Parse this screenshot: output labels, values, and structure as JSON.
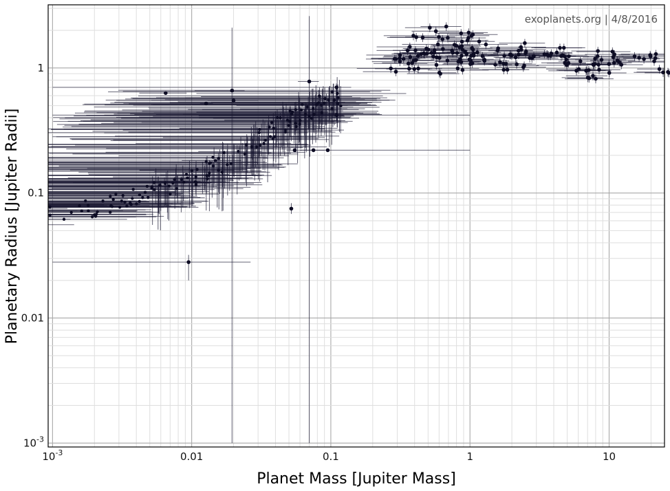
{
  "credit": "exoplanets.org | 4/8/2016",
  "chart_data": {
    "type": "scatter",
    "title": "",
    "xlabel": "Planet Mass [Jupiter Mass]",
    "ylabel": "Planetary Radius [Jupiter Radii]",
    "xscale": "log",
    "yscale": "log",
    "xlim": [
      0.00093,
      25
    ],
    "ylim": [
      0.00093,
      3.2
    ],
    "grid": true,
    "x_ticks": [
      {
        "value": 0.001,
        "label": "10",
        "exp": "-3"
      },
      {
        "value": 0.01,
        "label": "0.01",
        "exp": ""
      },
      {
        "value": 0.1,
        "label": "0.1",
        "exp": ""
      },
      {
        "value": 1,
        "label": "1",
        "exp": ""
      },
      {
        "value": 10,
        "label": "10",
        "exp": ""
      }
    ],
    "y_ticks": [
      {
        "value": 0.001,
        "label": "10",
        "exp": "-3"
      },
      {
        "value": 0.01,
        "label": "0.01",
        "exp": ""
      },
      {
        "value": 0.1,
        "label": "0.1",
        "exp": ""
      },
      {
        "value": 1,
        "label": "1",
        "exp": ""
      }
    ],
    "colors": {
      "point": "#0d0c24",
      "errorbar": "#15142e",
      "grid_major": "#a8a8a8",
      "grid_minor": "#dedede",
      "frame": "#000000"
    },
    "notable_points": [
      {
        "x": 0.0065,
        "y": 0.63,
        "xerr": [
          0.0042,
          0.0092
        ]
      },
      {
        "x": 0.0095,
        "y": 0.028,
        "xerr": [
          0.001,
          0.0265
        ],
        "yerr": [
          0.02,
          0.032
        ]
      },
      {
        "x": 0.0127,
        "y": 0.52,
        "xerr": [
          0.0115,
          0.0142
        ]
      },
      {
        "x": 0.0195,
        "y": 0.66,
        "xerr": [
          0.0105,
          0.024
        ],
        "yerr": [
          0.001,
          2.1
        ]
      },
      {
        "x": 0.02,
        "y": 0.55,
        "xerr": [
          0.013,
          0.03
        ]
      },
      {
        "x": 0.07,
        "y": 0.78,
        "xerr": [
          0.058,
          0.082
        ],
        "yerr": [
          0.001,
          2.6
        ]
      },
      {
        "x": 0.052,
        "y": 0.075,
        "yerr": [
          0.068,
          0.083
        ]
      },
      {
        "x": 0.055,
        "y": 0.22,
        "xerr": [
          0.048,
          0.062
        ]
      },
      {
        "x": 0.075,
        "y": 0.22,
        "xerr": [
          0.06,
          0.09
        ]
      },
      {
        "x": 0.095,
        "y": 0.22,
        "xerr": [
          0.06,
          1.0
        ]
      },
      {
        "x": 0.11,
        "y": 0.7,
        "xerr": [
          0.001,
          0.14
        ]
      },
      {
        "x": 0.11,
        "y": 0.42,
        "xerr": [
          0.001,
          1.0
        ]
      }
    ],
    "series": [
      {
        "description": "small planets: mass-radius trend with wide mass error bars",
        "points": [
          {
            "x": 0.00095,
            "y": 0.066
          },
          {
            "x": 0.00115,
            "y": 0.068
          },
          {
            "x": 0.00135,
            "y": 0.07
          },
          {
            "x": 0.0016,
            "y": 0.073
          },
          {
            "x": 0.0019,
            "y": 0.077
          },
          {
            "x": 0.0024,
            "y": 0.08
          },
          {
            "x": 0.003,
            "y": 0.085
          },
          {
            "x": 0.0038,
            "y": 0.09
          },
          {
            "x": 0.0048,
            "y": 0.1
          },
          {
            "x": 0.006,
            "y": 0.11
          },
          {
            "x": 0.0075,
            "y": 0.12
          },
          {
            "x": 0.009,
            "y": 0.13
          },
          {
            "x": 0.011,
            "y": 0.14
          },
          {
            "x": 0.013,
            "y": 0.155
          },
          {
            "x": 0.016,
            "y": 0.17
          },
          {
            "x": 0.019,
            "y": 0.19
          },
          {
            "x": 0.022,
            "y": 0.21
          },
          {
            "x": 0.026,
            "y": 0.24
          },
          {
            "x": 0.03,
            "y": 0.27
          },
          {
            "x": 0.035,
            "y": 0.3
          },
          {
            "x": 0.04,
            "y": 0.33
          },
          {
            "x": 0.046,
            "y": 0.36
          },
          {
            "x": 0.055,
            "y": 0.4
          },
          {
            "x": 0.065,
            "y": 0.45
          },
          {
            "x": 0.08,
            "y": 0.5
          },
          {
            "x": 0.1,
            "y": 0.55
          },
          {
            "x": 0.13,
            "y": 0.62
          },
          {
            "x": 0.16,
            "y": 0.68
          },
          {
            "x": 0.2,
            "y": 0.75
          }
        ]
      },
      {
        "description": "hot Jupiters cluster",
        "points": [
          {
            "x": 0.3,
            "y": 1.05
          },
          {
            "x": 0.35,
            "y": 1.3
          },
          {
            "x": 0.4,
            "y": 1.1
          },
          {
            "x": 0.45,
            "y": 1.55
          },
          {
            "x": 0.5,
            "y": 1.9
          },
          {
            "x": 0.55,
            "y": 1.2
          },
          {
            "x": 0.6,
            "y": 1.35
          },
          {
            "x": 0.7,
            "y": 1.0
          },
          {
            "x": 0.75,
            "y": 1.45
          },
          {
            "x": 0.85,
            "y": 2.0
          },
          {
            "x": 0.9,
            "y": 1.25
          },
          {
            "x": 1.0,
            "y": 1.15
          },
          {
            "x": 1.1,
            "y": 1.6
          },
          {
            "x": 1.3,
            "y": 1.3
          },
          {
            "x": 1.5,
            "y": 1.05
          },
          {
            "x": 1.8,
            "y": 1.2
          },
          {
            "x": 2.0,
            "y": 1.4
          },
          {
            "x": 2.5,
            "y": 1.1
          },
          {
            "x": 3.0,
            "y": 1.25
          },
          {
            "x": 4.0,
            "y": 1.15
          },
          {
            "x": 5.0,
            "y": 1.3
          },
          {
            "x": 6.0,
            "y": 1.05
          },
          {
            "x": 7.0,
            "y": 0.85
          },
          {
            "x": 8.5,
            "y": 1.2
          },
          {
            "x": 10.5,
            "y": 1.0
          },
          {
            "x": 13.5,
            "y": 1.2
          },
          {
            "x": 18.5,
            "y": 1.2
          },
          {
            "x": 23.0,
            "y": 1.0
          }
        ]
      }
    ]
  }
}
